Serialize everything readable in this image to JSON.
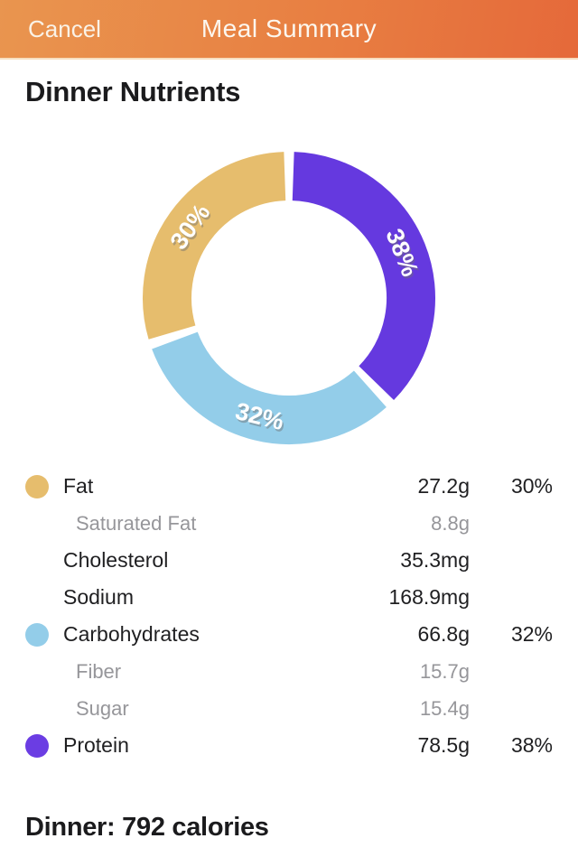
{
  "header": {
    "cancel_label": "Cancel",
    "title": "Meal Summary",
    "gradient": [
      "#E9954F",
      "#E5693A"
    ]
  },
  "section_title": "Dinner Nutrients",
  "chart_data": {
    "type": "pie",
    "variant": "donut",
    "title": "Dinner Nutrients",
    "start_angle_deg": 2,
    "gap_deg": 4,
    "label_color": "#FFFFFF",
    "segments": [
      {
        "label": "Protein",
        "percent": 38,
        "color": "#6539DF",
        "data_label": "38%"
      },
      {
        "label": "Carbohydrates",
        "percent": 32,
        "color": "#93CDE9",
        "data_label": "32%"
      },
      {
        "label": "Fat",
        "percent": 30,
        "color": "#E6BD6D",
        "data_label": "30%"
      }
    ]
  },
  "nutrients": {
    "rows": [
      {
        "label": "Fat",
        "amount": "27.2g",
        "percent": "30%",
        "dot_color": "#E6BD6D",
        "indent": false
      },
      {
        "label": "Saturated Fat",
        "amount": "8.8g",
        "percent": "",
        "dot_color": null,
        "indent": true
      },
      {
        "label": "Cholesterol",
        "amount": "35.3mg",
        "percent": "",
        "dot_color": null,
        "indent": false
      },
      {
        "label": "Sodium",
        "amount": "168.9mg",
        "percent": "",
        "dot_color": null,
        "indent": false
      },
      {
        "label": "Carbohydrates",
        "amount": "66.8g",
        "percent": "32%",
        "dot_color": "#93CDE9",
        "indent": false
      },
      {
        "label": "Fiber",
        "amount": "15.7g",
        "percent": "",
        "dot_color": null,
        "indent": true
      },
      {
        "label": "Sugar",
        "amount": "15.4g",
        "percent": "",
        "dot_color": null,
        "indent": true
      },
      {
        "label": "Protein",
        "amount": "78.5g",
        "percent": "38%",
        "dot_color": "#6B3DE3",
        "indent": false
      }
    ]
  },
  "footer": {
    "meal": "Dinner",
    "calories": 792,
    "text": "Dinner: 792 calories"
  }
}
